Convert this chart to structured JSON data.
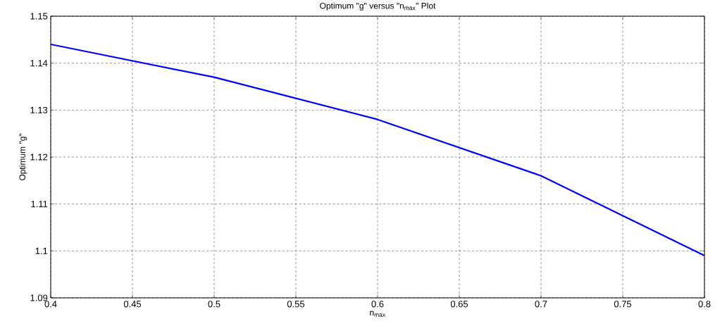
{
  "chart_data": {
    "type": "line",
    "title": "Optimum \"g\" versus \"n$_{max}$\" Plot",
    "xlabel": "n$_{max}$",
    "ylabel": "Optimum \"g\"",
    "x": [
      0.4,
      0.5,
      0.6,
      0.7,
      0.8
    ],
    "series": [
      {
        "color": "#0000ff",
        "values": [
          1.144,
          1.137,
          1.128,
          1.116,
          1.099
        ]
      }
    ],
    "xlim": [
      0.4,
      0.8
    ],
    "xticks": [
      0.4,
      0.45,
      0.5,
      0.55,
      0.6,
      0.65,
      0.7,
      0.75,
      0.8
    ],
    "ylim": [
      1.09,
      1.15
    ],
    "yticks": [
      1.09,
      1.1,
      1.11,
      1.12,
      1.13,
      1.14,
      1.15
    ],
    "grid": true,
    "line_style": "solid",
    "marker": "none"
  }
}
